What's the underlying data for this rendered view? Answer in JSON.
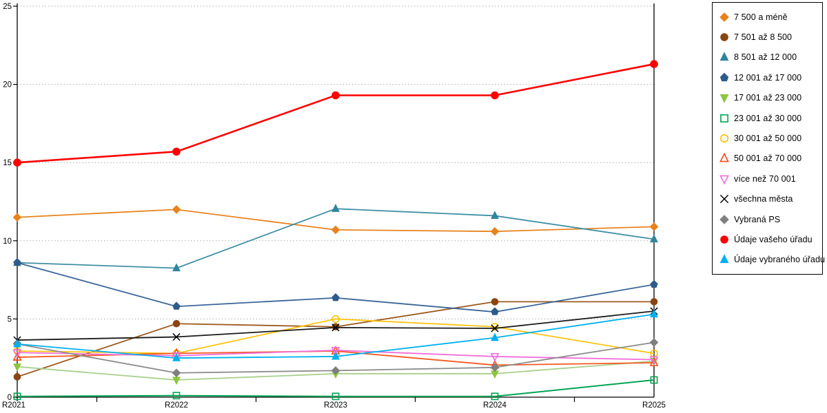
{
  "chart_data": {
    "type": "line",
    "title": "",
    "xlabel": "",
    "ylabel": "",
    "categories": [
      "R2021",
      "R2022",
      "R2023",
      "R2024",
      "R2025"
    ],
    "ylim": [
      0,
      25
    ],
    "yticks": [
      0,
      5,
      10,
      15,
      20,
      25
    ],
    "grid": "horizontal-dotted",
    "gridline_color": "#aaaaaa",
    "axis_color": "#000000",
    "legend_position": "right-box",
    "series": [
      {
        "name": "7 500 a méně",
        "marker": "diamond",
        "filled": true,
        "color": "#E8821D",
        "line_color": "#E8821D",
        "line_width": 1.8,
        "values": [
          11.5,
          12.0,
          10.7,
          10.6,
          10.9
        ]
      },
      {
        "name": "7 501 až 8 500",
        "marker": "circle",
        "filled": true,
        "color": "#8B4513",
        "line_color": "#9C5A1E",
        "line_width": 1.8,
        "values": [
          1.3,
          4.7,
          4.5,
          6.1,
          6.1
        ]
      },
      {
        "name": "8 501 až 12 000",
        "marker": "triangle-up",
        "filled": true,
        "color": "#31859C",
        "line_color": "#3E8FA5",
        "line_width": 1.8,
        "values": [
          8.6,
          8.25,
          12.05,
          11.6,
          10.1
        ]
      },
      {
        "name": "12 001 až 17 000",
        "marker": "pentagon",
        "filled": true,
        "color": "#2E5C8A",
        "line_color": "#3A6598",
        "line_width": 1.8,
        "values": [
          8.6,
          5.8,
          6.35,
          5.45,
          7.2
        ]
      },
      {
        "name": "17 001 až 23 000",
        "marker": "triangle-down",
        "filled": true,
        "color": "#8CC63E",
        "line_color": "#A8D08D",
        "line_width": 1.8,
        "values": [
          1.95,
          1.1,
          1.5,
          1.5,
          2.3
        ]
      },
      {
        "name": "23 001 až 30 000",
        "marker": "square",
        "filled": false,
        "color": "#00A453",
        "line_color": "#00A453",
        "line_width": 2.0,
        "values": [
          0.05,
          0.1,
          0.05,
          0.05,
          1.1
        ]
      },
      {
        "name": "30 001 až 50 000",
        "marker": "circle",
        "filled": false,
        "color": "#FFC000",
        "line_color": "#FFC30B",
        "line_width": 1.8,
        "values": [
          2.95,
          2.8,
          5.0,
          4.5,
          2.8
        ]
      },
      {
        "name": "50 001 až 70 000",
        "marker": "triangle-up",
        "filled": false,
        "color": "#FF4713",
        "line_color": "#F4591F",
        "line_width": 1.8,
        "values": [
          2.55,
          2.8,
          2.95,
          2.05,
          2.2
        ]
      },
      {
        "name": "více než 70 001",
        "marker": "triangle-down",
        "filled": false,
        "color": "#ED6FDF",
        "line_color": "#F26FD8",
        "line_width": 1.8,
        "values": [
          2.85,
          2.65,
          3.0,
          2.6,
          2.4
        ]
      },
      {
        "name": "všechna města",
        "marker": "x",
        "filled": false,
        "color": "#000000",
        "line_color": "#1A1A1A",
        "line_width": 1.8,
        "values": [
          3.65,
          3.85,
          4.45,
          4.4,
          5.5
        ]
      },
      {
        "name": "Vybraná PS",
        "marker": "diamond",
        "filled": true,
        "color": "#7F7F7F",
        "line_color": "#8C8C8C",
        "line_width": 1.8,
        "values": [
          3.4,
          1.55,
          1.7,
          1.9,
          3.5
        ]
      },
      {
        "name": "Údaje vašeho úřadu",
        "marker": "circle",
        "filled": true,
        "color": "#FF0000",
        "line_color": "#FF0000",
        "line_width": 2.6,
        "values": [
          15.0,
          15.7,
          19.3,
          19.3,
          21.3
        ]
      },
      {
        "name": "Údaje vybraného úřadu",
        "marker": "triangle-up",
        "filled": true,
        "color": "#00B0F0",
        "line_color": "#00B0F0",
        "line_width": 1.8,
        "values": [
          3.4,
          2.5,
          2.6,
          3.8,
          5.3
        ]
      }
    ]
  }
}
